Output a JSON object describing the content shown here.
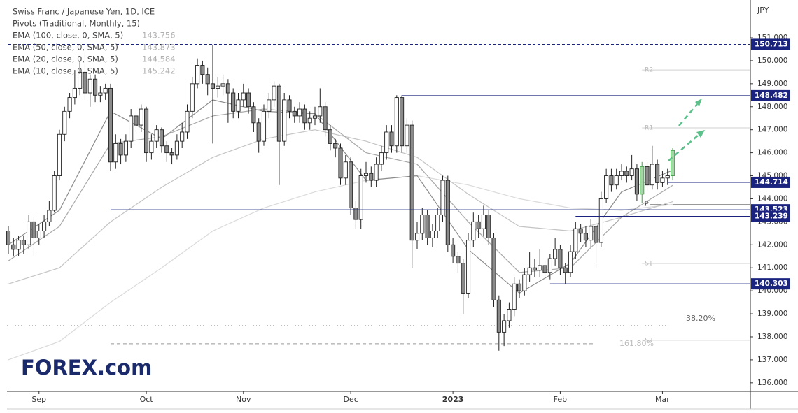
{
  "chart_data": {
    "type": "candlestick",
    "title": "Swiss Franc / Japanese Yen, 1D, ICE",
    "subtitle": "Pivots (Traditional, Monthly, 15)",
    "currency": "JPY",
    "logo": "FOREX.com",
    "up_color": "#ffffff",
    "down_color": "#8a8a8a",
    "highlight_color": "#a5d6a7",
    "highlighted": [
      124,
      130
    ],
    "open": [
      142.6,
      142.0,
      141.8,
      142.2,
      142.0,
      143.0,
      142.3,
      142.6,
      143.0,
      143.5,
      145.0,
      146.8,
      147.8,
      148.4,
      148.8,
      149.5,
      148.6,
      149.2,
      148.5,
      148.6,
      148.8,
      145.6,
      146.4,
      145.9,
      146.5,
      147.6,
      147.2,
      147.9,
      146.0,
      146.5,
      147.0,
      146.3,
      146.0,
      145.9,
      146.5,
      146.9,
      147.8,
      149.0,
      149.8,
      149.4,
      149.0,
      148.8,
      148.9,
      149.0,
      148.6,
      147.8,
      148.3,
      148.6,
      148.0,
      147.3,
      146.5,
      147.8,
      148.3,
      148.9,
      146.5,
      148.3,
      147.8,
      147.6,
      147.9,
      147.3,
      147.5,
      147.6,
      148.0,
      147.0,
      146.4,
      146.2,
      144.9,
      145.6,
      143.6,
      143.1,
      145.0,
      145.1,
      144.8,
      145.5,
      146.0,
      146.9,
      146.3,
      148.4,
      146.3,
      147.2,
      142.2,
      142.5,
      143.3,
      142.3,
      142.6,
      143.3,
      144.8,
      142.0,
      141.5,
      141.2,
      139.9,
      142.2,
      143.0,
      142.7,
      143.3,
      142.3,
      139.6,
      138.2,
      138.7,
      139.2,
      140.3,
      140.0,
      140.7,
      141.0,
      140.9,
      141.1,
      140.8,
      141.4,
      141.8,
      141.0,
      140.8,
      141.7,
      142.7,
      142.5,
      142.2,
      142.8,
      142.1,
      144.0,
      145.0,
      144.6,
      145.0,
      145.2,
      145.0,
      145.3,
      144.2,
      145.4,
      144.6,
      145.5,
      144.7,
      144.9,
      145.0
    ],
    "high": [
      142.8,
      142.3,
      142.4,
      142.4,
      143.3,
      143.2,
      142.9,
      143.3,
      143.9,
      145.2,
      147.0,
      148.0,
      148.6,
      149.6,
      150.0,
      150.4,
      149.4,
      149.4,
      148.9,
      149.0,
      149.0,
      146.8,
      146.6,
      146.8,
      147.9,
      147.8,
      148.1,
      148.0,
      146.8,
      147.2,
      147.1,
      146.5,
      146.2,
      146.8,
      147.3,
      148.1,
      149.3,
      150.1,
      150.0,
      149.7,
      150.7,
      149.3,
      149.4,
      149.2,
      148.8,
      148.6,
      149.0,
      148.8,
      148.2,
      147.5,
      148.1,
      148.6,
      149.1,
      149.0,
      148.6,
      148.5,
      148.0,
      148.2,
      148.1,
      147.8,
      148.0,
      148.8,
      148.2,
      147.2,
      146.6,
      146.4,
      145.9,
      145.8,
      143.9,
      145.3,
      145.6,
      145.4,
      145.8,
      146.3,
      147.2,
      147.2,
      148.5,
      148.5,
      147.5,
      147.4,
      143.0,
      143.6,
      143.5,
      142.9,
      143.6,
      145.0,
      145.0,
      142.3,
      141.7,
      141.4,
      142.5,
      143.4,
      143.3,
      143.7,
      143.5,
      142.5,
      139.8,
      139.0,
      139.5,
      140.6,
      140.5,
      141.0,
      141.7,
      141.4,
      141.8,
      141.3,
      141.6,
      142.3,
      142.0,
      141.2,
      142.0,
      143.0,
      142.9,
      142.8,
      143.1,
      143.0,
      144.3,
      145.3,
      145.3,
      145.3,
      145.5,
      145.4,
      145.9,
      145.5,
      145.6,
      145.6,
      146.3,
      145.7,
      145.2,
      145.3,
      146.2
    ],
    "low": [
      141.6,
      141.5,
      141.5,
      141.6,
      141.8,
      141.5,
      142.0,
      142.3,
      142.8,
      143.4,
      144.8,
      146.5,
      147.5,
      148.1,
      148.5,
      148.3,
      148.0,
      148.2,
      148.2,
      148.3,
      145.2,
      145.3,
      145.5,
      145.6,
      146.2,
      146.9,
      146.9,
      145.6,
      145.7,
      146.2,
      146.0,
      145.6,
      145.5,
      145.7,
      146.2,
      146.6,
      147.5,
      148.8,
      149.0,
      148.5,
      146.4,
      148.4,
      148.5,
      147.3,
      147.5,
      147.5,
      148.0,
      147.7,
      146.9,
      146.0,
      146.3,
      147.5,
      148.0,
      144.6,
      146.3,
      147.5,
      147.3,
      147.3,
      147.0,
      147.0,
      147.2,
      147.3,
      146.7,
      146.1,
      145.8,
      144.6,
      144.6,
      143.3,
      142.7,
      142.7,
      144.7,
      144.5,
      144.5,
      145.2,
      145.7,
      146.0,
      146.0,
      146.0,
      146.0,
      141.0,
      141.8,
      142.2,
      142.0,
      141.9,
      142.3,
      143.0,
      141.7,
      141.2,
      140.8,
      139.0,
      139.7,
      141.9,
      142.3,
      142.4,
      142.0,
      139.3,
      137.4,
      137.6,
      138.4,
      138.9,
      139.7,
      139.8,
      140.4,
      140.6,
      140.6,
      140.5,
      140.5,
      141.1,
      140.7,
      140.3,
      140.6,
      141.4,
      142.1,
      141.9,
      141.9,
      141.0,
      141.9,
      143.8,
      144.3,
      144.4,
      144.8,
      144.7,
      144.8,
      143.9,
      143.8,
      144.3,
      144.4,
      144.4,
      144.5,
      144.6,
      144.8
    ],
    "close": [
      142.0,
      141.8,
      142.2,
      142.0,
      143.0,
      142.3,
      142.6,
      143.0,
      143.5,
      145.0,
      146.8,
      147.8,
      148.4,
      148.8,
      149.5,
      148.6,
      149.2,
      148.5,
      148.6,
      148.8,
      145.6,
      146.4,
      145.9,
      146.5,
      147.6,
      147.2,
      147.9,
      146.0,
      146.5,
      147.0,
      146.3,
      146.0,
      145.9,
      146.5,
      146.9,
      147.8,
      149.0,
      149.8,
      149.4,
      149.0,
      148.8,
      148.9,
      149.0,
      148.6,
      147.8,
      148.3,
      148.6,
      148.0,
      147.3,
      146.5,
      147.8,
      148.3,
      148.9,
      146.5,
      148.3,
      147.8,
      147.6,
      147.9,
      147.3,
      147.5,
      147.6,
      148.0,
      147.0,
      146.4,
      146.2,
      144.9,
      145.6,
      143.6,
      143.1,
      145.0,
      145.1,
      144.8,
      145.5,
      146.0,
      146.9,
      146.3,
      148.4,
      146.3,
      147.2,
      142.2,
      142.5,
      143.3,
      142.3,
      142.6,
      143.3,
      144.8,
      142.0,
      141.5,
      141.2,
      139.9,
      142.2,
      143.0,
      142.7,
      143.3,
      142.3,
      139.6,
      138.2,
      138.7,
      139.2,
      140.3,
      140.0,
      140.7,
      141.0,
      140.9,
      141.1,
      140.8,
      141.4,
      141.8,
      141.0,
      140.8,
      141.7,
      142.7,
      142.5,
      142.2,
      142.8,
      142.1,
      144.0,
      145.0,
      144.6,
      145.0,
      145.2,
      145.0,
      145.3,
      144.2,
      145.4,
      144.6,
      145.5,
      144.7,
      144.9,
      145.0,
      146.1
    ],
    "series": [
      {
        "name": "EMA (100, close, 0, SMA, 5)",
        "color": "#dadada",
        "x": [
          0,
          10,
          20,
          30,
          40,
          50,
          60,
          70,
          80,
          90,
          100,
          110,
          120,
          130
        ],
        "values": [
          137.0,
          137.8,
          139.5,
          141.0,
          142.6,
          143.6,
          144.3,
          144.8,
          145.0,
          144.6,
          144.0,
          143.6,
          143.5,
          143.756
        ]
      },
      {
        "name": "EMA (50, close, 0, SMA, 5)",
        "color": "#c4c4c4",
        "x": [
          0,
          10,
          20,
          30,
          40,
          50,
          60,
          70,
          80,
          90,
          100,
          110,
          120,
          130
        ],
        "values": [
          140.3,
          141.0,
          143.0,
          144.5,
          145.8,
          146.6,
          147.0,
          146.5,
          145.8,
          144.2,
          142.8,
          142.6,
          143.2,
          143.873
        ]
      },
      {
        "name": "EMA (20, close, 0, SMA, 5)",
        "color": "#a8a8a8",
        "x": [
          0,
          10,
          20,
          30,
          40,
          50,
          60,
          70,
          80,
          90,
          100,
          110,
          120,
          130
        ],
        "values": [
          141.3,
          142.8,
          146.4,
          146.7,
          147.6,
          147.9,
          147.7,
          146.0,
          145.5,
          143.0,
          140.8,
          141.0,
          143.2,
          144.584
        ]
      },
      {
        "name": "EMA (10, close, 0, SMA, 5)",
        "color": "#8c8c8c",
        "x": [
          0,
          10,
          20,
          30,
          40,
          50,
          60,
          70,
          80,
          90,
          100,
          110,
          120,
          130
        ],
        "values": [
          142.0,
          143.5,
          147.8,
          146.6,
          148.3,
          147.8,
          147.7,
          144.8,
          145.0,
          141.8,
          139.9,
          141.2,
          144.3,
          145.242
        ]
      }
    ],
    "levels": [
      150.713,
      148.482,
      144.714,
      143.523,
      143.239,
      140.303
    ],
    "pivots": [
      {
        "name": "R2",
        "value": 149.6
      },
      {
        "name": "R1",
        "value": 147.08
      },
      {
        "name": "P",
        "value": 143.74
      },
      {
        "name": "S1",
        "value": 141.19
      },
      {
        "name": "S2",
        "value": 137.85
      }
    ],
    "fibs": [
      {
        "label": "38.20%",
        "value": 138.49
      },
      {
        "label": "161.80%",
        "value": 137.7
      }
    ],
    "xlim": [
      -0.27,
      145.2
    ],
    "ylim": [
      135.63,
      152.64
    ],
    "xticks": [
      {
        "value": 6,
        "label": "Sep"
      },
      {
        "value": 27,
        "label": "Oct"
      },
      {
        "value": 46,
        "label": "Nov"
      },
      {
        "value": 67,
        "label": "Dec"
      },
      {
        "value": 87,
        "label": "2023"
      },
      {
        "value": 108,
        "label": "Feb"
      },
      {
        "value": 128,
        "label": "Mar"
      }
    ],
    "yticks": [
      {
        "value": 136,
        "label": "136.000"
      },
      {
        "value": 137,
        "label": "137.000"
      },
      {
        "value": 138,
        "label": "138.000"
      },
      {
        "value": 139,
        "label": "139.000"
      },
      {
        "value": 140,
        "label": "140.000"
      },
      {
        "value": 141,
        "label": "141.000"
      },
      {
        "value": 142,
        "label": "142.000"
      },
      {
        "value": 143,
        "label": "143.000"
      },
      {
        "value": 144,
        "label": "144.000"
      },
      {
        "value": 145,
        "label": "145.000"
      },
      {
        "value": 146,
        "label": "146.000"
      },
      {
        "value": 147,
        "label": "147.000"
      },
      {
        "value": 148,
        "label": "148.000"
      },
      {
        "value": 149,
        "label": "149.000"
      },
      {
        "value": 150,
        "label": "150.000"
      },
      {
        "value": 151,
        "label": "151.000"
      }
    ]
  }
}
